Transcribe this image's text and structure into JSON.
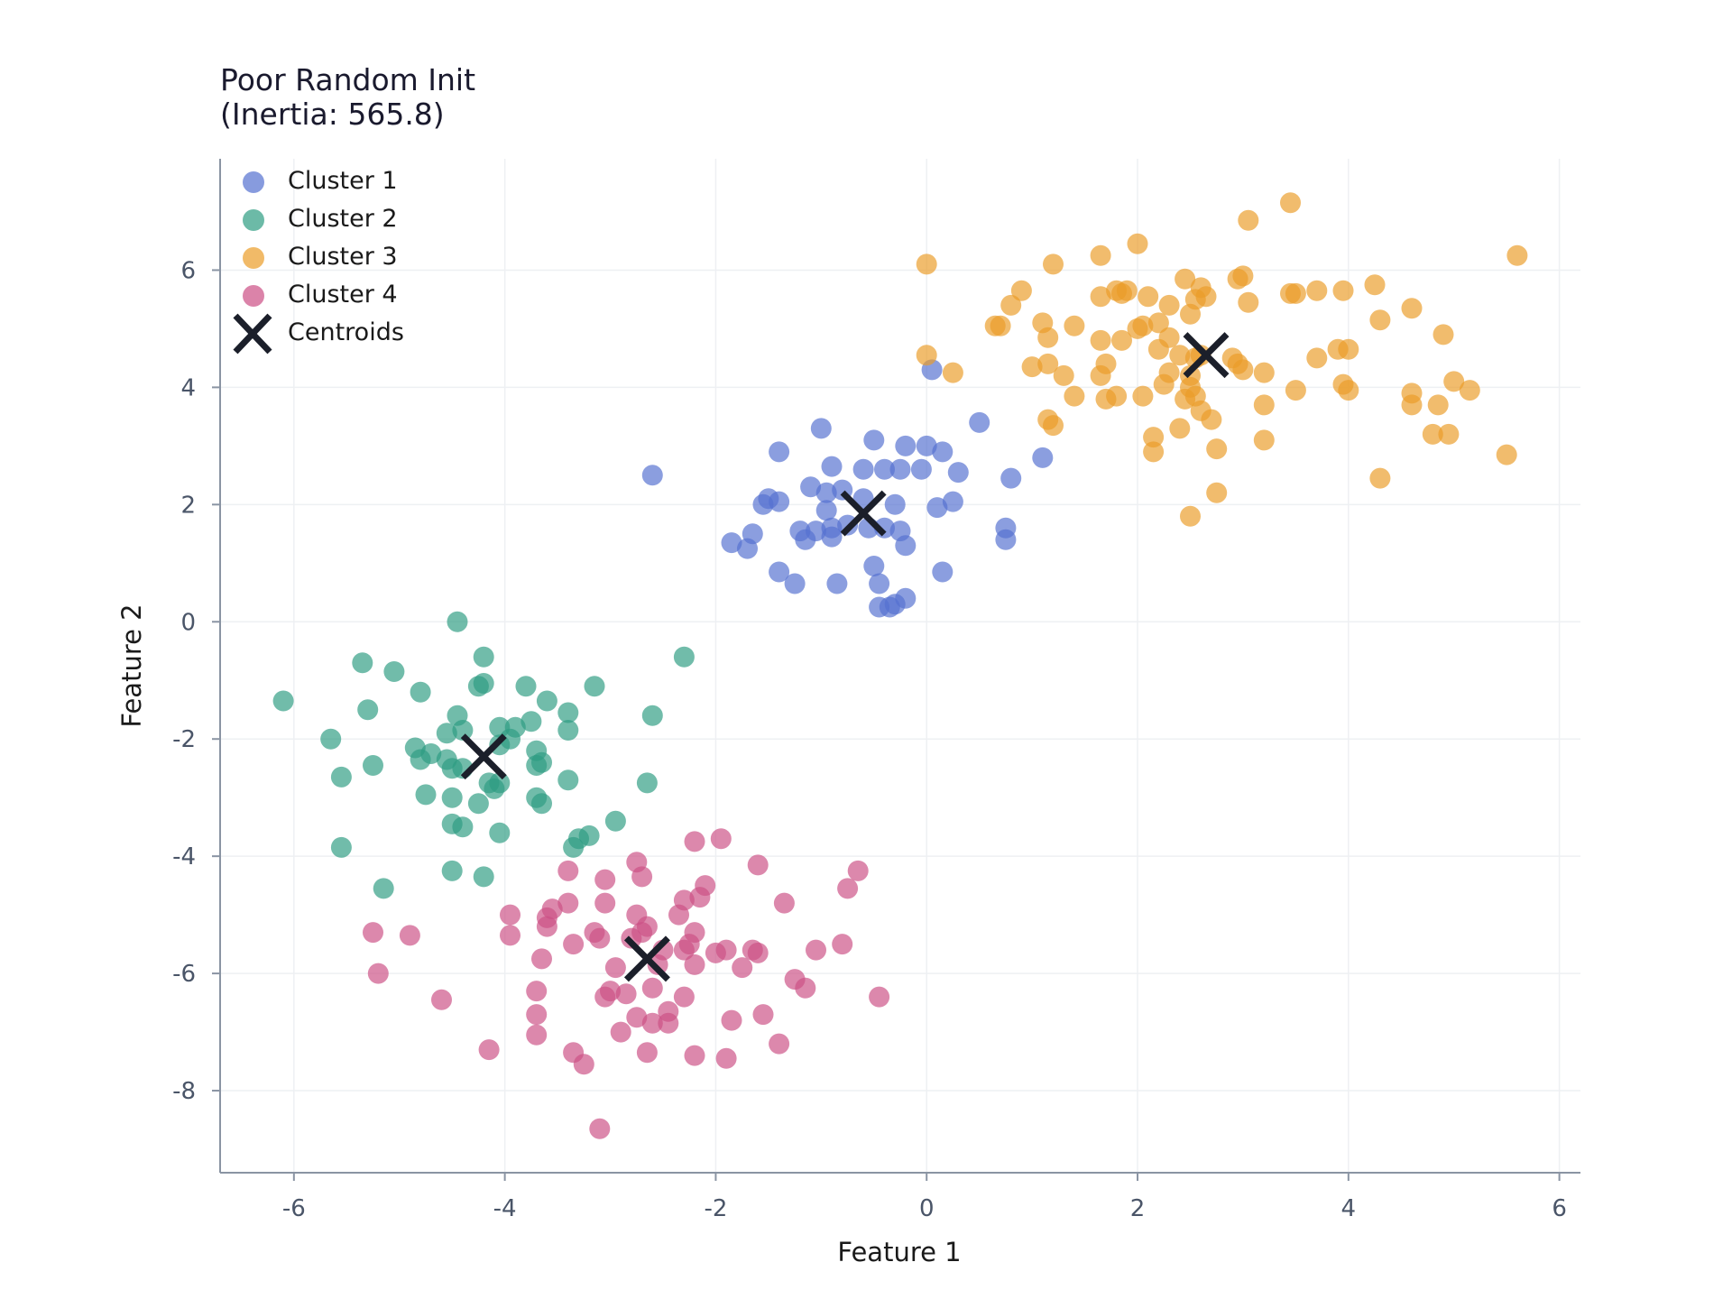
{
  "chart_data": {
    "type": "scatter",
    "title_lines": [
      "Poor Random Init",
      "(Inertia: 565.8)"
    ],
    "xlabel": "Feature 1",
    "ylabel": "Feature 2",
    "xlim": [
      -6.7,
      6.2
    ],
    "ylim": [
      -9.4,
      7.9
    ],
    "xticks": [
      -6,
      -4,
      -2,
      0,
      2,
      4,
      6
    ],
    "yticks": [
      -8,
      -6,
      -4,
      -2,
      0,
      2,
      4,
      6
    ],
    "grid": true,
    "legend_position": "top-left",
    "series": [
      {
        "name": "Cluster 1",
        "color": "#5470d0",
        "points": [
          [
            -2.6,
            2.5
          ],
          [
            -1.4,
            2.9
          ],
          [
            -1.0,
            3.3
          ],
          [
            -0.5,
            3.1
          ],
          [
            -0.2,
            3.0
          ],
          [
            0.0,
            3.0
          ],
          [
            0.15,
            2.9
          ],
          [
            -0.9,
            2.65
          ],
          [
            -0.6,
            2.6
          ],
          [
            -0.4,
            2.6
          ],
          [
            -0.25,
            2.6
          ],
          [
            -0.05,
            2.6
          ],
          [
            0.3,
            2.55
          ],
          [
            -1.1,
            2.3
          ],
          [
            -0.95,
            2.2
          ],
          [
            -0.8,
            2.25
          ],
          [
            -0.6,
            2.1
          ],
          [
            -0.3,
            2.0
          ],
          [
            0.25,
            2.05
          ],
          [
            0.1,
            1.95
          ],
          [
            -1.55,
            2.0
          ],
          [
            -1.5,
            2.1
          ],
          [
            -1.4,
            2.05
          ],
          [
            -0.95,
            1.9
          ],
          [
            -1.2,
            1.55
          ],
          [
            -1.05,
            1.55
          ],
          [
            -0.9,
            1.6
          ],
          [
            -0.75,
            1.65
          ],
          [
            -0.55,
            1.6
          ],
          [
            -0.4,
            1.6
          ],
          [
            -0.25,
            1.55
          ],
          [
            -1.15,
            1.4
          ],
          [
            -0.9,
            1.45
          ],
          [
            -0.2,
            1.3
          ],
          [
            -1.65,
            1.5
          ],
          [
            -1.85,
            1.35
          ],
          [
            -1.7,
            1.25
          ],
          [
            -0.5,
            0.95
          ],
          [
            -1.4,
            0.85
          ],
          [
            -1.25,
            0.65
          ],
          [
            -0.85,
            0.65
          ],
          [
            -0.45,
            0.65
          ],
          [
            0.15,
            0.85
          ],
          [
            -0.45,
            0.25
          ],
          [
            -0.35,
            0.25
          ],
          [
            -0.3,
            0.3
          ],
          [
            -0.2,
            0.4
          ],
          [
            0.5,
            3.4
          ],
          [
            0.8,
            2.45
          ],
          [
            0.75,
            1.6
          ],
          [
            0.75,
            1.4
          ],
          [
            1.1,
            2.8
          ],
          [
            0.05,
            4.3
          ]
        ]
      },
      {
        "name": "Cluster 2",
        "color": "#2e9c82",
        "points": [
          [
            -4.45,
            0.0
          ],
          [
            -4.2,
            -0.6
          ],
          [
            -2.3,
            -0.6
          ],
          [
            -5.35,
            -0.7
          ],
          [
            -5.05,
            -0.85
          ],
          [
            -4.2,
            -1.05
          ],
          [
            -4.25,
            -1.1
          ],
          [
            -3.8,
            -1.1
          ],
          [
            -3.15,
            -1.1
          ],
          [
            -4.8,
            -1.2
          ],
          [
            -3.6,
            -1.35
          ],
          [
            -6.1,
            -1.35
          ],
          [
            -5.3,
            -1.5
          ],
          [
            -4.45,
            -1.6
          ],
          [
            -3.4,
            -1.55
          ],
          [
            -2.6,
            -1.6
          ],
          [
            -4.05,
            -1.8
          ],
          [
            -3.9,
            -1.8
          ],
          [
            -3.75,
            -1.7
          ],
          [
            -3.4,
            -1.85
          ],
          [
            -4.4,
            -1.85
          ],
          [
            -4.55,
            -1.9
          ],
          [
            -5.65,
            -2.0
          ],
          [
            -3.95,
            -2.0
          ],
          [
            -4.05,
            -2.1
          ],
          [
            -4.85,
            -2.15
          ],
          [
            -4.7,
            -2.25
          ],
          [
            -3.7,
            -2.2
          ],
          [
            -4.8,
            -2.35
          ],
          [
            -4.55,
            -2.35
          ],
          [
            -4.4,
            -2.5
          ],
          [
            -3.65,
            -2.4
          ],
          [
            -3.7,
            -2.45
          ],
          [
            -5.55,
            -2.65
          ],
          [
            -5.25,
            -2.45
          ],
          [
            -4.5,
            -2.5
          ],
          [
            -4.05,
            -2.75
          ],
          [
            -4.15,
            -2.75
          ],
          [
            -3.4,
            -2.7
          ],
          [
            -2.65,
            -2.75
          ],
          [
            -4.1,
            -2.85
          ],
          [
            -4.75,
            -2.95
          ],
          [
            -4.5,
            -3.0
          ],
          [
            -4.25,
            -3.1
          ],
          [
            -3.7,
            -3.0
          ],
          [
            -3.65,
            -3.1
          ],
          [
            -4.5,
            -3.45
          ],
          [
            -4.4,
            -3.5
          ],
          [
            -4.05,
            -3.6
          ],
          [
            -2.95,
            -3.4
          ],
          [
            -3.2,
            -3.65
          ],
          [
            -3.3,
            -3.7
          ],
          [
            -3.35,
            -3.85
          ],
          [
            -5.55,
            -3.85
          ],
          [
            -4.5,
            -4.25
          ],
          [
            -4.2,
            -4.35
          ],
          [
            -5.15,
            -4.55
          ]
        ]
      },
      {
        "name": "Cluster 3",
        "color": "#eb9c28",
        "points": [
          [
            3.45,
            7.15
          ],
          [
            3.05,
            6.85
          ],
          [
            2.0,
            6.45
          ],
          [
            1.65,
            6.25
          ],
          [
            1.2,
            6.1
          ],
          [
            0.0,
            6.1
          ],
          [
            5.6,
            6.25
          ],
          [
            2.45,
            5.85
          ],
          [
            2.95,
            5.85
          ],
          [
            3.0,
            5.9
          ],
          [
            2.6,
            5.7
          ],
          [
            1.8,
            5.65
          ],
          [
            1.9,
            5.65
          ],
          [
            0.9,
            5.65
          ],
          [
            1.65,
            5.55
          ],
          [
            1.85,
            5.6
          ],
          [
            2.1,
            5.55
          ],
          [
            2.55,
            5.5
          ],
          [
            2.65,
            5.55
          ],
          [
            0.8,
            5.4
          ],
          [
            2.3,
            5.4
          ],
          [
            3.45,
            5.6
          ],
          [
            3.5,
            5.6
          ],
          [
            3.7,
            5.65
          ],
          [
            3.95,
            5.65
          ],
          [
            4.25,
            5.75
          ],
          [
            4.6,
            5.35
          ],
          [
            3.05,
            5.45
          ],
          [
            0.65,
            5.05
          ],
          [
            0.7,
            5.05
          ],
          [
            1.1,
            5.1
          ],
          [
            1.4,
            5.05
          ],
          [
            2.05,
            5.05
          ],
          [
            2.0,
            5.0
          ],
          [
            2.2,
            5.1
          ],
          [
            2.5,
            5.25
          ],
          [
            1.15,
            4.85
          ],
          [
            1.65,
            4.8
          ],
          [
            1.85,
            4.8
          ],
          [
            2.3,
            4.85
          ],
          [
            4.3,
            5.15
          ],
          [
            4.9,
            4.9
          ],
          [
            0.0,
            4.55
          ],
          [
            2.2,
            4.65
          ],
          [
            2.4,
            4.55
          ],
          [
            2.55,
            4.5
          ],
          [
            2.6,
            4.55
          ],
          [
            2.9,
            4.5
          ],
          [
            2.95,
            4.4
          ],
          [
            3.7,
            4.5
          ],
          [
            3.9,
            4.65
          ],
          [
            4.0,
            4.65
          ],
          [
            1.7,
            4.4
          ],
          [
            1.0,
            4.35
          ],
          [
            1.15,
            4.4
          ],
          [
            0.25,
            4.25
          ],
          [
            1.3,
            4.2
          ],
          [
            1.65,
            4.2
          ],
          [
            2.3,
            4.25
          ],
          [
            2.5,
            4.2
          ],
          [
            3.0,
            4.3
          ],
          [
            3.2,
            4.25
          ],
          [
            2.25,
            4.05
          ],
          [
            2.5,
            4.0
          ],
          [
            1.4,
            3.85
          ],
          [
            1.8,
            3.85
          ],
          [
            2.05,
            3.85
          ],
          [
            2.45,
            3.8
          ],
          [
            3.2,
            3.7
          ],
          [
            3.5,
            3.95
          ],
          [
            3.95,
            4.05
          ],
          [
            4.0,
            3.95
          ],
          [
            4.6,
            3.9
          ],
          [
            4.6,
            3.7
          ],
          [
            4.85,
            3.7
          ],
          [
            5.0,
            4.1
          ],
          [
            5.15,
            3.95
          ],
          [
            1.7,
            3.8
          ],
          [
            2.55,
            3.85
          ],
          [
            2.6,
            3.6
          ],
          [
            2.7,
            3.45
          ],
          [
            1.15,
            3.45
          ],
          [
            1.2,
            3.35
          ],
          [
            2.4,
            3.3
          ],
          [
            2.15,
            3.15
          ],
          [
            3.2,
            3.1
          ],
          [
            2.75,
            2.95
          ],
          [
            2.15,
            2.9
          ],
          [
            4.8,
            3.2
          ],
          [
            4.95,
            3.2
          ],
          [
            5.5,
            2.85
          ],
          [
            4.3,
            2.45
          ],
          [
            2.75,
            2.2
          ],
          [
            2.5,
            1.8
          ]
        ]
      },
      {
        "name": "Cluster 4",
        "color": "#cc4f85",
        "points": [
          [
            -2.2,
            -3.75
          ],
          [
            -1.95,
            -3.7
          ],
          [
            -2.75,
            -4.1
          ],
          [
            -2.7,
            -4.35
          ],
          [
            -1.6,
            -4.15
          ],
          [
            -0.65,
            -4.25
          ],
          [
            -3.4,
            -4.25
          ],
          [
            -3.05,
            -4.4
          ],
          [
            -2.1,
            -4.5
          ],
          [
            -2.15,
            -4.7
          ],
          [
            -2.3,
            -4.75
          ],
          [
            -1.35,
            -4.8
          ],
          [
            -0.75,
            -4.55
          ],
          [
            -3.55,
            -4.9
          ],
          [
            -3.4,
            -4.8
          ],
          [
            -3.6,
            -5.05
          ],
          [
            -3.05,
            -4.8
          ],
          [
            -2.75,
            -5.0
          ],
          [
            -2.65,
            -5.2
          ],
          [
            -2.35,
            -5.0
          ],
          [
            -2.2,
            -5.3
          ],
          [
            -2.25,
            -5.5
          ],
          [
            -3.1,
            -5.4
          ],
          [
            -3.15,
            -5.3
          ],
          [
            -3.95,
            -5.0
          ],
          [
            -3.95,
            -5.35
          ],
          [
            -3.6,
            -5.2
          ],
          [
            -5.25,
            -5.3
          ],
          [
            -4.9,
            -5.35
          ],
          [
            -2.7,
            -5.3
          ],
          [
            -2.8,
            -5.4
          ],
          [
            -2.5,
            -5.6
          ],
          [
            -2.3,
            -5.6
          ],
          [
            -2.0,
            -5.65
          ],
          [
            -1.9,
            -5.6
          ],
          [
            -1.65,
            -5.6
          ],
          [
            -1.6,
            -5.65
          ],
          [
            -1.05,
            -5.6
          ],
          [
            -0.8,
            -5.5
          ],
          [
            -3.35,
            -5.5
          ],
          [
            -3.65,
            -5.75
          ],
          [
            -2.95,
            -5.9
          ],
          [
            -2.55,
            -5.85
          ],
          [
            -2.2,
            -5.85
          ],
          [
            -1.75,
            -5.9
          ],
          [
            -5.2,
            -6.0
          ],
          [
            -2.6,
            -6.25
          ],
          [
            -3.0,
            -6.3
          ],
          [
            -3.05,
            -6.4
          ],
          [
            -2.85,
            -6.35
          ],
          [
            -2.3,
            -6.4
          ],
          [
            -1.25,
            -6.1
          ],
          [
            -1.15,
            -6.25
          ],
          [
            -3.7,
            -6.3
          ],
          [
            -4.6,
            -6.45
          ],
          [
            -0.45,
            -6.4
          ],
          [
            -2.75,
            -6.75
          ],
          [
            -2.6,
            -6.85
          ],
          [
            -2.45,
            -6.85
          ],
          [
            -2.45,
            -6.65
          ],
          [
            -1.85,
            -6.8
          ],
          [
            -1.55,
            -6.7
          ],
          [
            -3.7,
            -6.7
          ],
          [
            -3.7,
            -7.05
          ],
          [
            -2.9,
            -7.0
          ],
          [
            -1.4,
            -7.2
          ],
          [
            -4.15,
            -7.3
          ],
          [
            -3.35,
            -7.35
          ],
          [
            -2.65,
            -7.35
          ],
          [
            -2.2,
            -7.4
          ],
          [
            -1.9,
            -7.45
          ],
          [
            -3.25,
            -7.55
          ],
          [
            -3.1,
            -8.65
          ]
        ]
      }
    ],
    "centroids": {
      "name": "Centroids",
      "color": "#1b1f2a",
      "points": [
        [
          -0.6,
          1.85
        ],
        [
          -4.2,
          -2.3
        ],
        [
          2.65,
          4.55
        ],
        [
          -2.65,
          -5.75
        ]
      ]
    }
  }
}
